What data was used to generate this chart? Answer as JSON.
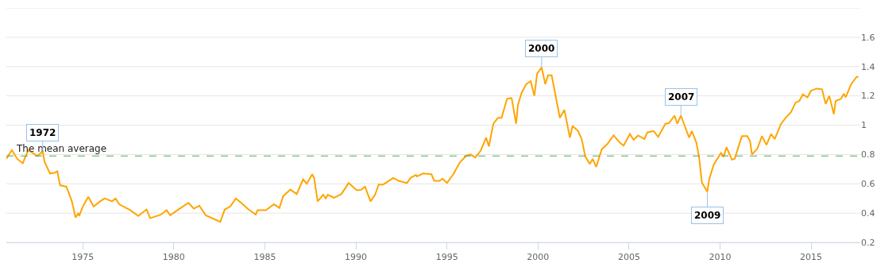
{
  "chart_data": {
    "type": "line",
    "xlim": [
      1970.8,
      2017.7
    ],
    "xticks": [
      1975,
      1980,
      1985,
      1990,
      1995,
      2000,
      2005,
      2010,
      2015
    ],
    "ylim": [
      0.2,
      1.8
    ],
    "yticks": [
      0.2,
      0.4,
      0.6,
      0.8,
      1,
      1.2,
      1.4,
      1.6,
      {
        "value": 1.8,
        "label": null
      }
    ],
    "grid": "y",
    "legend": false,
    "marker": "none",
    "line_style": "solid",
    "series": [
      {
        "color": "#ffa500",
        "x": [
          1970.8,
          1971.1,
          1971.4,
          1971.7,
          1972.0,
          1972.5,
          1972.8,
          1972.9,
          1973.2,
          1973.45,
          1973.6,
          1973.75,
          1974.1,
          1974.4,
          1974.6,
          1974.75,
          1974.8,
          1975.0,
          1975.3,
          1975.6,
          1975.95,
          1976.2,
          1976.6,
          1976.8,
          1977.0,
          1977.6,
          1978.05,
          1978.5,
          1978.7,
          1979.3,
          1979.6,
          1979.8,
          1980.2,
          1980.8,
          1981.1,
          1981.4,
          1981.75,
          1982.2,
          1982.55,
          1982.8,
          1983.1,
          1983.4,
          1983.7,
          1984.1,
          1984.5,
          1984.6,
          1985.05,
          1985.5,
          1985.8,
          1986.0,
          1986.4,
          1986.75,
          1987.1,
          1987.3,
          1987.6,
          1987.7,
          1987.9,
          1988.2,
          1988.35,
          1988.45,
          1988.8,
          1989.2,
          1989.6,
          1990.05,
          1990.3,
          1990.5,
          1990.8,
          1991.05,
          1991.25,
          1991.5,
          1992.05,
          1992.35,
          1992.8,
          1993.0,
          1993.3,
          1993.35,
          1993.7,
          1994.15,
          1994.3,
          1994.6,
          1994.75,
          1995.0,
          1995.35,
          1995.7,
          1996.05,
          1996.3,
          1996.55,
          1996.85,
          1997.15,
          1997.3,
          1997.55,
          1997.8,
          1998.0,
          1998.3,
          1998.55,
          1998.8,
          1998.9,
          1999.1,
          1999.35,
          1999.6,
          1999.8,
          1999.95,
          2000.2,
          2000.4,
          2000.55,
          2000.75,
          2001.0,
          2001.2,
          2001.45,
          2001.75,
          2001.9,
          2002.2,
          2002.4,
          2002.6,
          2002.85,
          2003.0,
          2003.2,
          2003.5,
          2003.8,
          2004.15,
          2004.5,
          2004.7,
          2005.05,
          2005.25,
          2005.5,
          2005.85,
          2006.0,
          2006.35,
          2006.6,
          2007.0,
          2007.2,
          2007.5,
          2007.65,
          2007.85,
          2008.0,
          2008.3,
          2008.45,
          2008.7,
          2008.85,
          2009.0,
          2009.3,
          2009.4,
          2009.65,
          2010.05,
          2010.2,
          2010.35,
          2010.65,
          2010.8,
          2011.2,
          2011.5,
          2011.65,
          2011.75,
          2012.05,
          2012.3,
          2012.55,
          2012.8,
          2013.0,
          2013.35,
          2013.6,
          2013.9,
          2014.15,
          2014.35,
          2014.55,
          2014.8,
          2015.0,
          2015.3,
          2015.6,
          2015.8,
          2016.0,
          2016.25,
          2016.35,
          2016.65,
          2016.8,
          2016.9,
          2017.2,
          2017.5,
          2017.6
        ],
        "values": [
          0.77,
          0.83,
          0.77,
          0.74,
          0.83,
          0.79,
          0.82,
          0.75,
          0.67,
          0.675,
          0.685,
          0.59,
          0.58,
          0.48,
          0.37,
          0.4,
          0.38,
          0.445,
          0.51,
          0.445,
          0.48,
          0.5,
          0.48,
          0.5,
          0.46,
          0.42,
          0.38,
          0.425,
          0.365,
          0.39,
          0.42,
          0.385,
          0.42,
          0.47,
          0.43,
          0.45,
          0.385,
          0.36,
          0.34,
          0.425,
          0.445,
          0.5,
          0.47,
          0.425,
          0.39,
          0.42,
          0.42,
          0.46,
          0.435,
          0.515,
          0.56,
          0.53,
          0.63,
          0.6,
          0.665,
          0.64,
          0.48,
          0.525,
          0.5,
          0.525,
          0.505,
          0.53,
          0.605,
          0.555,
          0.56,
          0.58,
          0.48,
          0.525,
          0.595,
          0.595,
          0.64,
          0.62,
          0.605,
          0.64,
          0.66,
          0.65,
          0.67,
          0.665,
          0.62,
          0.62,
          0.635,
          0.605,
          0.665,
          0.745,
          0.79,
          0.8,
          0.78,
          0.825,
          0.915,
          0.855,
          1.01,
          1.05,
          1.05,
          1.18,
          1.185,
          1.01,
          1.14,
          1.22,
          1.28,
          1.3,
          1.2,
          1.35,
          1.395,
          1.28,
          1.34,
          1.34,
          1.18,
          1.05,
          1.105,
          0.915,
          0.995,
          0.96,
          0.905,
          0.785,
          0.735,
          0.77,
          0.715,
          0.835,
          0.87,
          0.93,
          0.88,
          0.86,
          0.94,
          0.9,
          0.93,
          0.905,
          0.95,
          0.96,
          0.92,
          1.01,
          1.015,
          1.065,
          1.01,
          1.065,
          1.015,
          0.915,
          0.96,
          0.88,
          0.78,
          0.61,
          0.545,
          0.63,
          0.73,
          0.81,
          0.785,
          0.85,
          0.765,
          0.77,
          0.925,
          0.925,
          0.89,
          0.8,
          0.84,
          0.925,
          0.865,
          0.94,
          0.905,
          1.01,
          1.05,
          1.09,
          1.155,
          1.165,
          1.21,
          1.19,
          1.235,
          1.25,
          1.245,
          1.145,
          1.2,
          1.075,
          1.165,
          1.18,
          1.215,
          1.19,
          1.28,
          1.33,
          1.33
        ]
      }
    ],
    "ref_lines": [
      {
        "axis": "y",
        "value": 0.79,
        "label": "The mean average",
        "color": "#55a855",
        "line_style": "dashed"
      }
    ],
    "annotations": [
      {
        "text": "1972",
        "x": 1972.8,
        "y": 0.82
      },
      {
        "text": "2000",
        "x": 2000.2,
        "y": 1.395
      },
      {
        "text": "2007",
        "x": 2007.85,
        "y": 1.065
      },
      {
        "text": "2009",
        "x": 2009.3,
        "y": 0.545
      }
    ]
  }
}
